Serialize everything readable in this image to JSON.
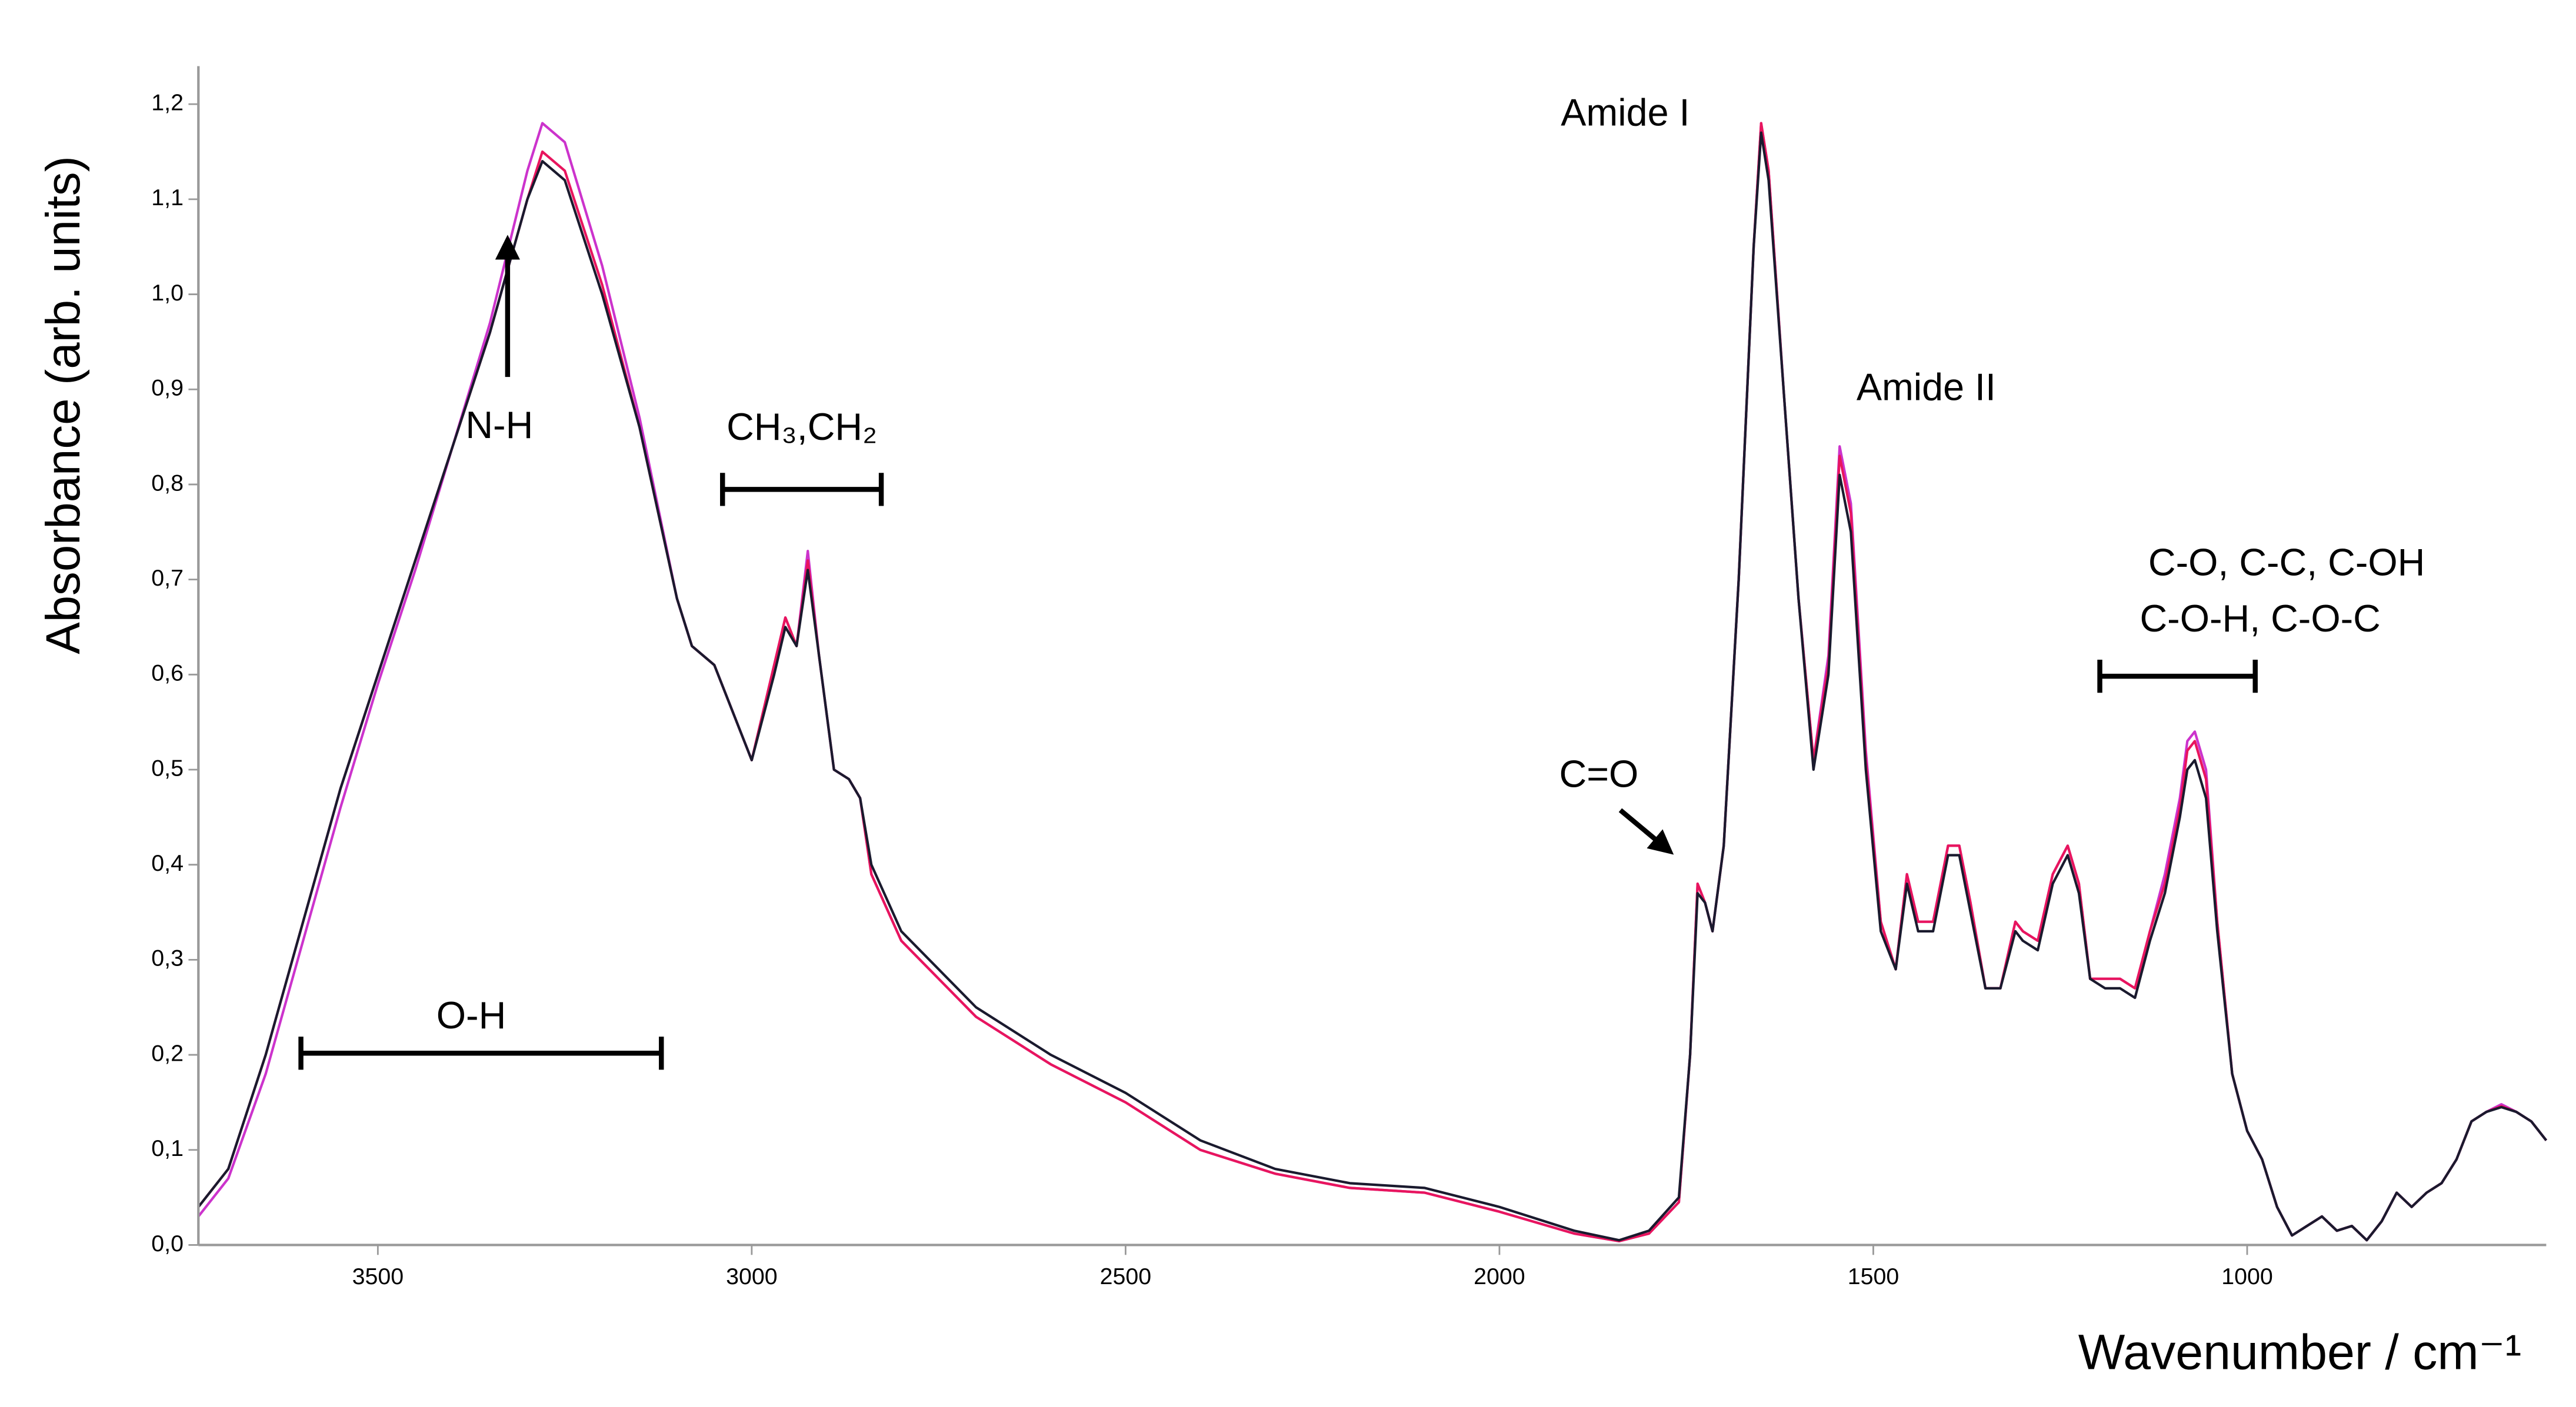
{
  "chart_data": {
    "type": "line",
    "y_label": "Absorbance (arb. units)",
    "x_label": "Wavenumber / cm⁻¹",
    "xlim": [
      3740,
      600
    ],
    "ylim": [
      0,
      1.24
    ],
    "xticks": [
      3500,
      3000,
      2500,
      2000,
      1500,
      1000
    ],
    "yticks": [
      {
        "value": 0,
        "label": "0,0"
      },
      {
        "value": 0.1,
        "label": "0,1"
      },
      {
        "value": 0.2,
        "label": "0,2"
      },
      {
        "value": 0.3,
        "label": "0,3"
      },
      {
        "value": 0.4,
        "label": "0,4"
      },
      {
        "value": 0.5,
        "label": "0,5"
      },
      {
        "value": 0.6,
        "label": "0,6"
      },
      {
        "value": 0.7,
        "label": "0,7"
      },
      {
        "value": 0.8,
        "label": "0,8"
      },
      {
        "value": 0.9,
        "label": "0,9"
      },
      {
        "value": 1.0,
        "label": "1,0"
      },
      {
        "value": 1.1,
        "label": "1,1"
      },
      {
        "value": 1.2,
        "label": "1,2"
      }
    ],
    "annotations": [
      "Amide I",
      "Amide II",
      "N-H",
      "CH₃,CH₂",
      "C=O",
      "C-O, C-C, C-OH",
      "C-O-H, C-O-C",
      "O-H"
    ],
    "x": [
      3740,
      3700,
      3650,
      3600,
      3550,
      3500,
      3450,
      3400,
      3350,
      3300,
      3280,
      3250,
      3200,
      3150,
      3100,
      3080,
      3050,
      3000,
      2970,
      2955,
      2940,
      2925,
      2910,
      2890,
      2870,
      2855,
      2840,
      2800,
      2750,
      2700,
      2600,
      2500,
      2400,
      2300,
      2200,
      2100,
      2000,
      1900,
      1840,
      1800,
      1760,
      1745,
      1735,
      1725,
      1715,
      1700,
      1680,
      1660,
      1650,
      1640,
      1620,
      1600,
      1580,
      1560,
      1545,
      1530,
      1510,
      1490,
      1470,
      1455,
      1440,
      1420,
      1400,
      1385,
      1370,
      1350,
      1330,
      1310,
      1300,
      1280,
      1260,
      1240,
      1225,
      1210,
      1190,
      1170,
      1150,
      1130,
      1110,
      1090,
      1080,
      1070,
      1055,
      1040,
      1020,
      1000,
      980,
      960,
      940,
      920,
      900,
      880,
      860,
      840,
      820,
      800,
      780,
      760,
      740,
      720,
      700,
      680,
      660,
      640,
      620,
      600
    ],
    "series": [
      {
        "color": "#cc33cc",
        "values": [
          0.03,
          0.07,
          0.18,
          0.32,
          0.46,
          0.59,
          0.71,
          0.84,
          0.97,
          1.13,
          1.18,
          1.16,
          1.03,
          0.87,
          0.68,
          0.63,
          0.61,
          0.51,
          0.61,
          0.66,
          0.63,
          0.73,
          0.62,
          0.5,
          0.49,
          0.47,
          0.39,
          0.32,
          0.28,
          0.24,
          0.19,
          0.15,
          0.1,
          0.075,
          0.06,
          0.055,
          0.035,
          0.012,
          0.004,
          0.012,
          0.045,
          0.2,
          0.38,
          0.36,
          0.33,
          0.42,
          0.7,
          1.05,
          1.18,
          1.13,
          0.9,
          0.68,
          0.51,
          0.62,
          0.84,
          0.78,
          0.52,
          0.34,
          0.29,
          0.39,
          0.34,
          0.34,
          0.42,
          0.42,
          0.36,
          0.27,
          0.27,
          0.34,
          0.33,
          0.32,
          0.39,
          0.42,
          0.38,
          0.28,
          0.28,
          0.28,
          0.27,
          0.33,
          0.39,
          0.47,
          0.53,
          0.54,
          0.5,
          0.34,
          0.18,
          0.12,
          0.09,
          0.04,
          0.01,
          0.02,
          0.03,
          0.015,
          0.02,
          0.005,
          0.025,
          0.055,
          0.04,
          0.055,
          0.065,
          0.09,
          0.13,
          0.14,
          0.148,
          0.14,
          0.13,
          0.11
        ]
      },
      {
        "color": "#1a1a2e",
        "values": [
          0.04,
          0.08,
          0.2,
          0.34,
          0.48,
          0.6,
          0.72,
          0.84,
          0.96,
          1.1,
          1.14,
          1.12,
          1.0,
          0.86,
          0.68,
          0.63,
          0.61,
          0.51,
          0.6,
          0.65,
          0.63,
          0.71,
          0.62,
          0.5,
          0.49,
          0.47,
          0.4,
          0.33,
          0.29,
          0.25,
          0.2,
          0.16,
          0.11,
          0.08,
          0.065,
          0.06,
          0.04,
          0.015,
          0.005,
          0.015,
          0.05,
          0.2,
          0.37,
          0.36,
          0.33,
          0.42,
          0.7,
          1.05,
          1.17,
          1.12,
          0.9,
          0.68,
          0.5,
          0.6,
          0.81,
          0.75,
          0.5,
          0.33,
          0.29,
          0.38,
          0.33,
          0.33,
          0.41,
          0.41,
          0.35,
          0.27,
          0.27,
          0.33,
          0.32,
          0.31,
          0.38,
          0.41,
          0.37,
          0.28,
          0.27,
          0.27,
          0.26,
          0.32,
          0.37,
          0.45,
          0.5,
          0.51,
          0.47,
          0.33,
          0.18,
          0.12,
          0.09,
          0.04,
          0.01,
          0.02,
          0.03,
          0.015,
          0.02,
          0.005,
          0.025,
          0.055,
          0.04,
          0.055,
          0.065,
          0.09,
          0.13,
          0.14,
          0.145,
          0.14,
          0.13,
          0.11
        ]
      },
      {
        "color": "#e8155e",
        "values": [
          0.04,
          0.08,
          0.2,
          0.34,
          0.48,
          0.6,
          0.72,
          0.84,
          0.96,
          1.1,
          1.15,
          1.13,
          1.01,
          0.86,
          0.68,
          0.63,
          0.61,
          0.51,
          0.61,
          0.66,
          0.63,
          0.72,
          0.62,
          0.5,
          0.49,
          0.47,
          0.39,
          0.32,
          0.28,
          0.24,
          0.19,
          0.15,
          0.1,
          0.075,
          0.06,
          0.055,
          0.035,
          0.012,
          0.004,
          0.012,
          0.045,
          0.2,
          0.38,
          0.36,
          0.33,
          0.42,
          0.7,
          1.05,
          1.18,
          1.13,
          0.9,
          0.68,
          0.51,
          0.61,
          0.83,
          0.77,
          0.51,
          0.34,
          0.29,
          0.39,
          0.34,
          0.34,
          0.42,
          0.42,
          0.36,
          0.27,
          0.27,
          0.34,
          0.33,
          0.32,
          0.39,
          0.42,
          0.38,
          0.28,
          0.28,
          0.28,
          0.27,
          0.33,
          0.38,
          0.46,
          0.52,
          0.53,
          0.49,
          0.34,
          0.18,
          0.12,
          0.09,
          0.04,
          0.01,
          0.02,
          0.03,
          0.015,
          0.02,
          0.005,
          0.025,
          0.055,
          0.04,
          0.055,
          0.065,
          0.09,
          0.13,
          0.14,
          0.146,
          0.14,
          0.13,
          0.11
        ]
      }
    ]
  }
}
